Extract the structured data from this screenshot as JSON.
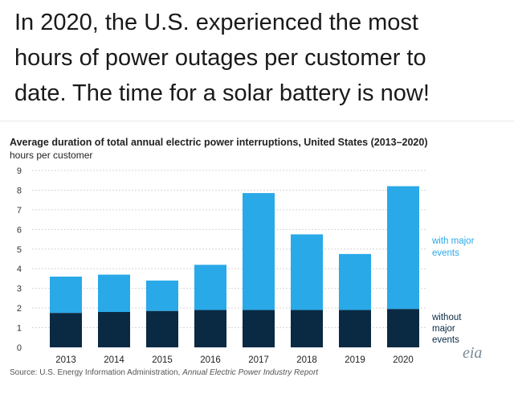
{
  "headline": {
    "lines": [
      "In 2020, the U.S. experienced the most",
      "hours of power outages per customer to",
      "date. The time for a solar battery is now!"
    ]
  },
  "colors": {
    "with_major": "#2aa9e8",
    "without_major": "#0a2a43",
    "gridline": "#d6d6d6"
  },
  "chart_data": {
    "type": "bar",
    "stacked": true,
    "title": "Average duration of total annual electric power interruptions, United States (2013–2020)",
    "ylabel": "hours per customer",
    "xlabel": "",
    "ylim": [
      0,
      9
    ],
    "yticks": [
      "0",
      "1",
      "2",
      "3",
      "4",
      "5",
      "6",
      "7",
      "8",
      "9"
    ],
    "grid": true,
    "categories": [
      "2013",
      "2014",
      "2015",
      "2016",
      "2017",
      "2018",
      "2019",
      "2020"
    ],
    "series": [
      {
        "name": "without major events",
        "values": [
          1.75,
          1.8,
          1.85,
          1.9,
          1.9,
          1.9,
          1.9,
          1.95
        ]
      },
      {
        "name": "with major events",
        "values": [
          1.85,
          1.9,
          1.55,
          2.3,
          5.95,
          3.85,
          2.85,
          6.25
        ]
      }
    ],
    "legend": {
      "with_major_lines": [
        "with major",
        "events"
      ],
      "without_major_lines": [
        "without",
        "major",
        "events"
      ]
    }
  },
  "source": {
    "prefix": "Source: U.S. Energy Information Administration, ",
    "report": "Annual Electric Power Industry Report"
  },
  "logo": {
    "label": "eia",
    "icon": "eia-logo"
  }
}
